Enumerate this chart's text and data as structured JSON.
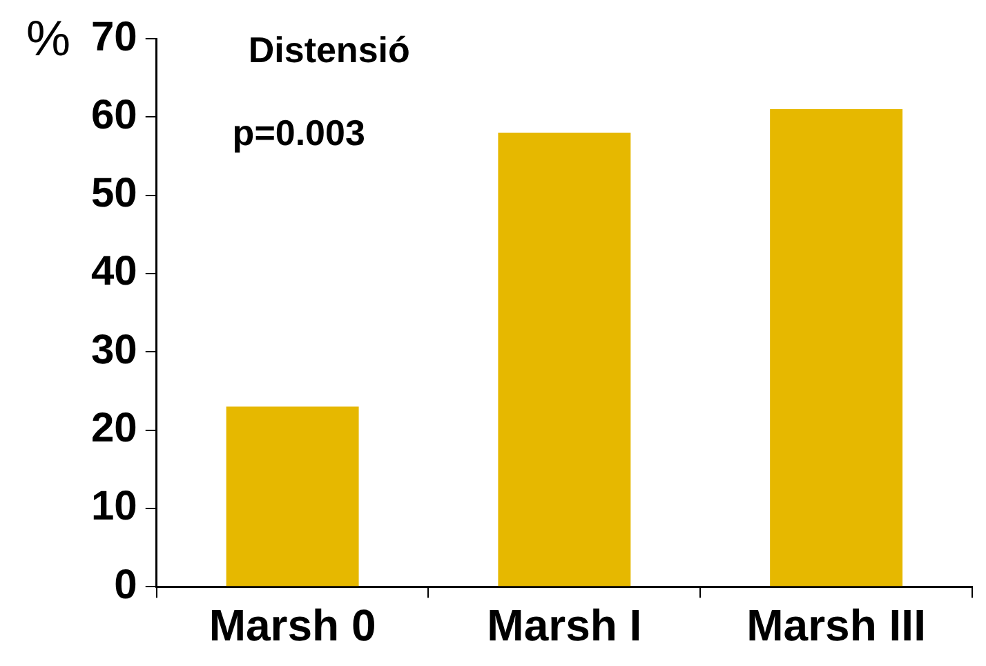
{
  "chart_data": {
    "type": "bar",
    "title": "Distensió",
    "ylabel": "%",
    "annotations": [
      "p=0.003"
    ],
    "categories": [
      "Marsh 0",
      "Marsh I",
      "Marsh III"
    ],
    "values": [
      23,
      58,
      61
    ],
    "color": "#e6b800",
    "ylim": [
      0,
      70
    ],
    "yticks": [
      0,
      10,
      20,
      30,
      40,
      50,
      60,
      70
    ],
    "grid": false,
    "legend": false
  }
}
